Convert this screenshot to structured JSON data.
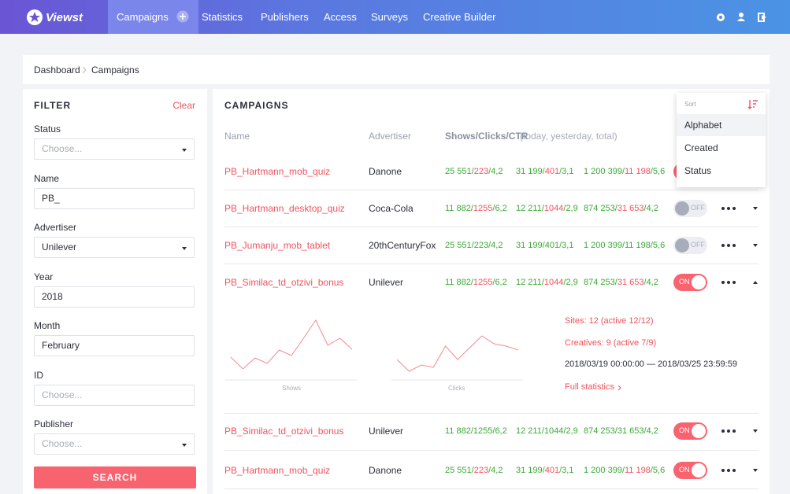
{
  "nav": {
    "logo": "Viewst",
    "items": [
      "Campaigns",
      "Statistics",
      "Publishers",
      "Access",
      "Surveys",
      "Creative Builder"
    ],
    "active": 0
  },
  "breadcrumb": [
    "Dashboard",
    "Campaigns"
  ],
  "filter": {
    "title": "FILTER",
    "clear": "Clear",
    "fields": [
      {
        "label": "Status",
        "text": "Choose...",
        "placeholder": true,
        "select": true
      },
      {
        "label": "Name",
        "text": "PB_"
      },
      {
        "label": "Advertiser",
        "text": "Unilever",
        "select": true
      },
      {
        "label": "Year",
        "text": "2018"
      },
      {
        "label": "Month",
        "text": "February"
      },
      {
        "label": "ID",
        "text": "Choose...",
        "placeholder": true
      },
      {
        "label": "Publisher",
        "text": "Choose...",
        "placeholder": true,
        "select": true
      }
    ],
    "button": "SEARCH"
  },
  "campaigns": {
    "title": "CAMPAIGNS",
    "headers": {
      "name": "Name",
      "advertiser": "Advertiser",
      "stats": "Shows/Clicks/CTR",
      "stats_note": "(today, yesterday, total)"
    },
    "rows": [
      {
        "name": "PB_Hartmann_mob_quiz",
        "advertiser": "Danone",
        "stats": [
          "25 551/223/4,2",
          "31 199/401/3,1",
          "1 200 399/11 198/5,6"
        ],
        "alert": true,
        "status": "ON"
      },
      {
        "name": "PB_Hartmann_desktop_quiz",
        "advertiser": "Coca-Cola",
        "stats": [
          "11 882/1255/6,2",
          "12 211/1044/2,9",
          "874 253/31 653/4,2"
        ],
        "alert": true,
        "status": "OFF"
      },
      {
        "name": "PB_Jumanju_mob_tablet",
        "advertiser": "20thCenturyFox",
        "stats": [
          "25 551/223/4,2",
          "31 199/401/3,1",
          "1 200 399/11 198/5,6"
        ],
        "alert": false,
        "status": "OFF"
      },
      {
        "name": "PB_Similac_td_otzivi_bonus",
        "advertiser": "Unilever",
        "stats": [
          "11 882/1255/6,2",
          "12 211/1044/2,9",
          "874 253/31 653/4,2"
        ],
        "alert": true,
        "status": "ON",
        "expanded": true
      },
      {
        "name": "PB_Similac_td_otzivi_bonus",
        "advertiser": "Unilever",
        "stats": [
          "11 882/1255/6,2",
          "12 211/1044/2,9",
          "874 253/31 653/4,2"
        ],
        "alert": false,
        "status": "ON"
      },
      {
        "name": "PB_Hartmann_mob_quiz",
        "advertiser": "Danone",
        "stats": [
          "25 551/223/4,2",
          "31 199/401/3,1",
          "1 200 399/11 198/5,6"
        ],
        "alert": true,
        "status": "ON"
      }
    ],
    "details": {
      "charts": [
        {
          "label": "Shows",
          "values": [
            23,
            8,
            22,
            15,
            32,
            25,
            47,
            70,
            38,
            47,
            33
          ]
        },
        {
          "label": "Clicks",
          "values": [
            20,
            5,
            13,
            10,
            37,
            20,
            35,
            50,
            40,
            37,
            32
          ]
        }
      ],
      "sites": "Sites: 12 (active 12/12)",
      "creatives": "Creatives: 9 (active 7/9)",
      "period": "2018/03/19 00:00:00 — 2018/03/25 23:59:59",
      "link": "Full statistics"
    }
  },
  "sort": {
    "label": "Sort",
    "options": [
      "Alphabet",
      "Created",
      "Status"
    ],
    "selected": 0
  }
}
